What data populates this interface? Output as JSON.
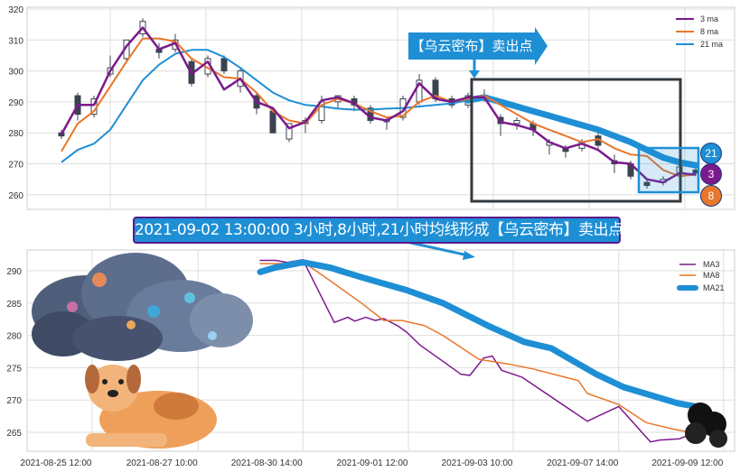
{
  "colors": {
    "ma3": "#7b1a8c",
    "ma8": "#e8762b",
    "ma21": "#1e8fd5",
    "candle": "#3a4350",
    "box": "#333a40"
  },
  "annotations": {
    "callout": "【乌云密布】卖出点",
    "banner": "2021-09-02 13:00:00 3小时,8小时,21小时均线形成【乌云密布】卖出点",
    "badges": [
      "21",
      "3",
      "8"
    ]
  },
  "chart_data": [
    {
      "type": "line",
      "title": "",
      "ylim": [
        255,
        321
      ],
      "yticks": [
        "320",
        "310",
        "300",
        "290",
        "280",
        "270",
        "260"
      ],
      "ytick_values": [
        320,
        310,
        300,
        290,
        280,
        270,
        260
      ],
      "x_index_range": [
        -2,
        42
      ],
      "legend": {
        "placement": "top-right",
        "entries": [
          "3 ma",
          "8 ma",
          "21 ma"
        ]
      },
      "candles": [
        [
          280,
          281,
          278,
          279
        ],
        [
          292,
          293,
          284,
          286
        ],
        [
          286,
          292,
          285,
          291
        ],
        [
          299,
          305,
          298,
          301
        ],
        [
          304,
          310,
          303,
          310
        ],
        [
          312,
          317,
          311,
          316
        ],
        [
          307,
          309,
          304,
          306
        ],
        [
          307,
          312,
          306,
          310
        ],
        [
          303,
          304,
          295,
          296
        ],
        [
          299,
          305,
          298,
          304
        ],
        [
          304,
          305,
          299,
          300
        ],
        [
          295,
          301,
          293,
          300
        ],
        [
          292,
          293,
          286,
          288
        ],
        [
          287,
          288,
          280,
          280
        ],
        [
          278,
          283,
          277,
          283
        ],
        [
          283,
          285,
          280,
          284
        ],
        [
          284,
          292,
          283,
          290
        ],
        [
          290,
          292,
          288,
          292
        ],
        [
          291,
          292,
          287,
          289
        ],
        [
          288,
          289,
          283,
          284
        ],
        [
          284,
          285,
          281,
          284
        ],
        [
          285,
          292,
          284,
          291
        ],
        [
          290,
          299,
          289,
          297
        ],
        [
          297,
          298,
          290,
          291
        ],
        [
          291,
          292,
          288,
          289
        ],
        [
          289,
          293,
          288,
          292
        ],
        [
          292,
          294,
          290,
          291
        ],
        [
          285,
          286,
          279,
          283
        ],
        [
          283,
          285,
          281,
          284
        ],
        [
          283,
          284,
          279,
          281
        ],
        [
          276,
          278,
          273,
          277
        ],
        [
          275,
          276,
          272,
          274
        ],
        [
          275,
          278,
          274,
          277
        ],
        [
          279,
          280,
          275,
          276
        ],
        [
          271,
          273,
          267,
          270
        ],
        [
          270,
          271,
          265,
          266
        ],
        [
          264,
          265,
          262,
          263
        ],
        [
          264,
          266,
          263,
          265
        ],
        [
          267,
          270,
          266,
          269
        ],
        [
          268,
          270,
          266,
          267
        ]
      ],
      "series": [
        {
          "name": "3 ma",
          "values": [
            279.5,
            289,
            289,
            300,
            308,
            314,
            307,
            309,
            299,
            303,
            294,
            297.5,
            290,
            288,
            281.5,
            283.5,
            290.5,
            291.5,
            289.5,
            285,
            284,
            287,
            296,
            291,
            290,
            291.5,
            291.5,
            283.5,
            282.5,
            281,
            277,
            275,
            276.5,
            274.5,
            270.5,
            270,
            265,
            264,
            267,
            266.5
          ]
        },
        {
          "name": "8 ma",
          "values": [
            274,
            283,
            287,
            295,
            303,
            310.5,
            310.5,
            309.5,
            304,
            301,
            298,
            297.5,
            293,
            287,
            284,
            283,
            289,
            291,
            289.5,
            287,
            285,
            285.5,
            290,
            292,
            290,
            291,
            292,
            289,
            286,
            283,
            281,
            279,
            277,
            278,
            275,
            273,
            272.5,
            268,
            266,
            266.5
          ]
        },
        {
          "name": "21 ma",
          "values": [
            270.5,
            274.5,
            276.5,
            281,
            289,
            297,
            302,
            305.5,
            306.8,
            306.8,
            304.5,
            301,
            297,
            293,
            290.5,
            289,
            288.5,
            287.8,
            287.5,
            287.5,
            287.8,
            288,
            288.5,
            289,
            289.5,
            290.5,
            291.5,
            290,
            288.5,
            287,
            285.5,
            284,
            282.5,
            281,
            279,
            277,
            274.5,
            272,
            270.5,
            269.5
          ]
        }
      ]
    },
    {
      "type": "line",
      "title": "",
      "ylim": [
        262,
        292.5
      ],
      "xlim": [
        -32.25,
        65.6
      ],
      "yticks": [
        "290",
        "285",
        "280",
        "275",
        "270",
        "265"
      ],
      "ytick_values": [
        290,
        285,
        280,
        275,
        270,
        265
      ],
      "xticks": [
        "2021-08-25 12:00",
        "2021-08-27 10:00",
        "2021-08-30 14:00",
        "2021-09-01 12:00",
        "2021-09-03 10:00",
        "2021-09-07 14:00",
        "2021-09-09 12:00"
      ],
      "xtick_values": [
        -23.25,
        -8.6,
        5.9,
        20.5,
        35,
        49.6,
        64.1
      ],
      "legend": {
        "placement": "top-right",
        "entries": [
          "MA3",
          "MA8",
          "MA21"
        ]
      },
      "series": [
        {
          "name": "MA3",
          "points": [
            [
              0,
              291.6
            ],
            [
              2.1,
              291.6
            ],
            [
              3.75,
              291.3
            ],
            [
              5.9,
              291.7
            ],
            [
              10.25,
              282
            ],
            [
              12.1,
              282.8
            ],
            [
              13.1,
              282.2
            ],
            [
              14.6,
              282.8
            ],
            [
              15.9,
              282.3
            ],
            [
              17.1,
              282.6
            ],
            [
              19,
              281.5
            ],
            [
              20.25,
              280.5
            ],
            [
              22.1,
              278.5
            ],
            [
              25.25,
              276
            ],
            [
              27.75,
              274
            ],
            [
              29,
              273.8
            ],
            [
              30.9,
              276.5
            ],
            [
              32.1,
              276.8
            ],
            [
              33.4,
              274.6
            ],
            [
              36.25,
              273.5
            ],
            [
              45.25,
              266.7
            ],
            [
              47.1,
              267.7
            ],
            [
              49.6,
              269
            ],
            [
              54,
              263.5
            ],
            [
              55.25,
              263.8
            ],
            [
              58,
              264
            ],
            [
              60.25,
              265
            ]
          ]
        },
        {
          "name": "MA8",
          "points": [
            [
              0,
              291.1
            ],
            [
              2.75,
              291.1
            ],
            [
              5.9,
              291.4
            ],
            [
              10.25,
              288
            ],
            [
              14,
              285
            ],
            [
              17.1,
              282.3
            ],
            [
              19.6,
              282.3
            ],
            [
              22.75,
              281.5
            ],
            [
              25.25,
              280
            ],
            [
              30.25,
              276.3
            ],
            [
              34.6,
              275.5
            ],
            [
              37.75,
              274.8
            ],
            [
              44,
              273
            ],
            [
              45.25,
              271
            ],
            [
              49.6,
              269.3
            ],
            [
              53.4,
              266.5
            ],
            [
              57.1,
              265.5
            ],
            [
              60.25,
              264.8
            ]
          ]
        },
        {
          "name": "MA21",
          "points": [
            [
              0,
              289.8
            ],
            [
              2.1,
              290.5
            ],
            [
              5.9,
              291.3
            ],
            [
              9.6,
              290.5
            ],
            [
              14,
              289
            ],
            [
              20.25,
              287
            ],
            [
              25.25,
              285
            ],
            [
              31.5,
              281.5
            ],
            [
              36.5,
              279
            ],
            [
              40.25,
              278
            ],
            [
              46.5,
              274
            ],
            [
              50.25,
              272
            ],
            [
              57.75,
              269.5
            ],
            [
              60.25,
              269
            ]
          ]
        }
      ]
    }
  ]
}
